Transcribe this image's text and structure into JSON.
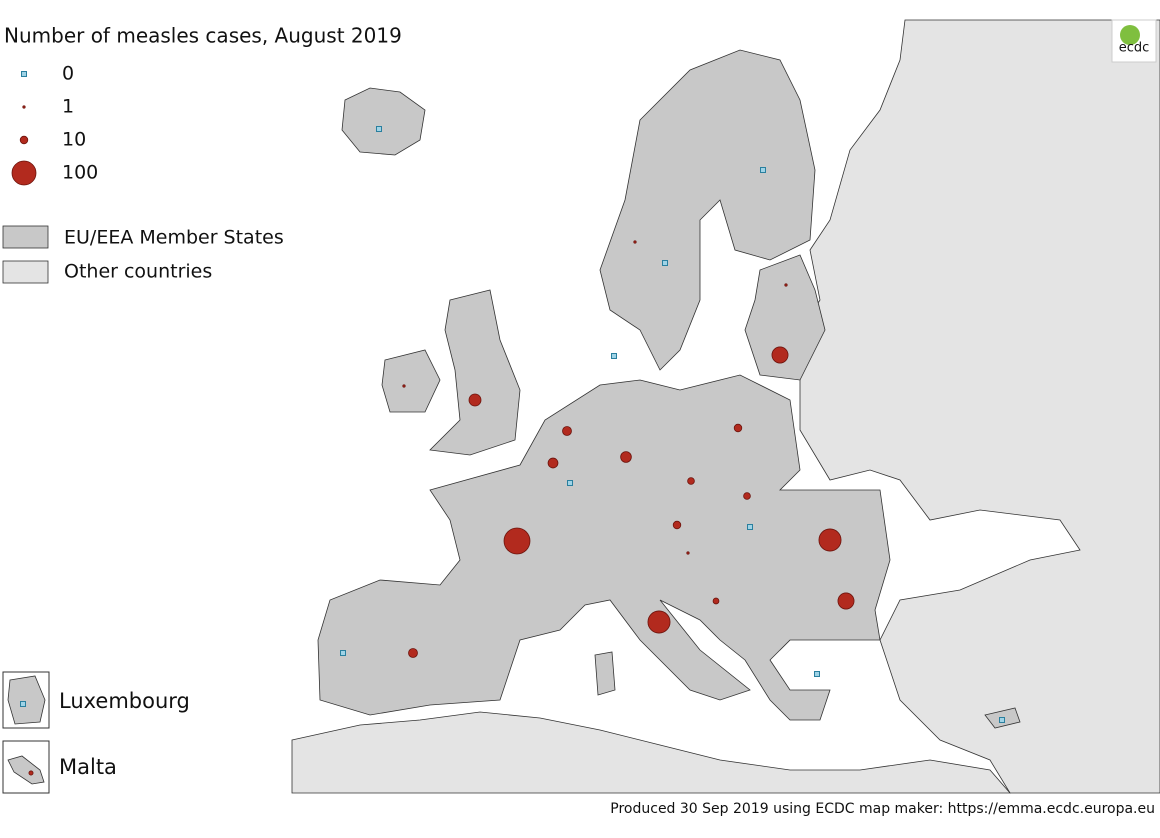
{
  "title": "Number of measles cases, August 2019",
  "legend": {
    "sizes": [
      0,
      1,
      10,
      100
    ],
    "areas": [
      "EU/EEA Member States",
      "Other countries"
    ]
  },
  "insets": [
    "Luxembourg",
    "Malta"
  ],
  "markers": [
    117,
    85,
    85,
    45,
    45,
    25,
    20,
    17,
    14,
    14,
    10,
    10,
    8,
    8,
    6,
    1,
    1,
    1,
    1,
    3,
    0,
    0,
    0,
    0,
    0,
    0,
    0,
    0,
    0,
    0
  ],
  "logo": "ecdc",
  "footer": "Produced 30 Sep 2019 using ECDC map maker: https://emma.ecdc.europa.eu"
}
